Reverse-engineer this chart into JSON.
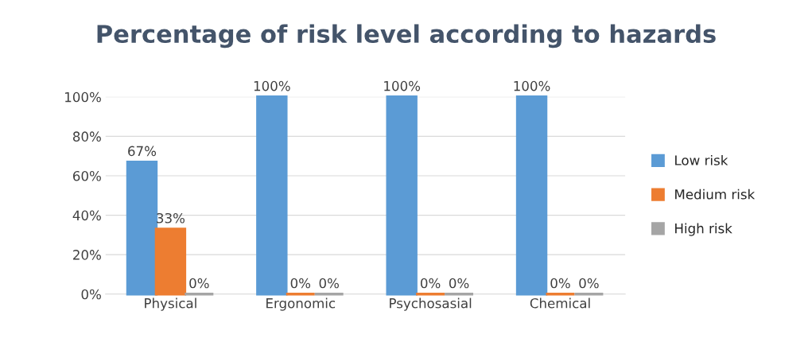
{
  "chart_data": {
    "type": "bar",
    "title": "Percentage of risk level according to hazards",
    "categories": [
      "Physical",
      "Ergonomic",
      "Psychosasial",
      "Chemical"
    ],
    "series": [
      {
        "name": "Low risk",
        "color": "#5b9bd5",
        "values": [
          67,
          100,
          100,
          100
        ],
        "value_labels": [
          "67%",
          "100%",
          "100%",
          "100%"
        ]
      },
      {
        "name": "Medium risk",
        "color": "#ed7d31",
        "values": [
          33,
          0,
          0,
          0
        ],
        "value_labels": [
          "33%",
          "0%",
          "0%",
          "0%"
        ]
      },
      {
        "name": "High risk",
        "color": "#a5a5a5",
        "values": [
          0,
          0,
          0,
          0
        ],
        "value_labels": [
          "0%",
          "0%",
          "0%",
          "0%"
        ]
      }
    ],
    "ylim": [
      0,
      100
    ],
    "yticks": [
      {
        "value": 0,
        "label": "0%"
      },
      {
        "value": 20,
        "label": "20%"
      },
      {
        "value": 40,
        "label": "40%"
      },
      {
        "value": 60,
        "label": "60%"
      },
      {
        "value": 80,
        "label": "80%"
      },
      {
        "value": 100,
        "label": "100%"
      }
    ],
    "grid": "y",
    "legend": "right"
  }
}
